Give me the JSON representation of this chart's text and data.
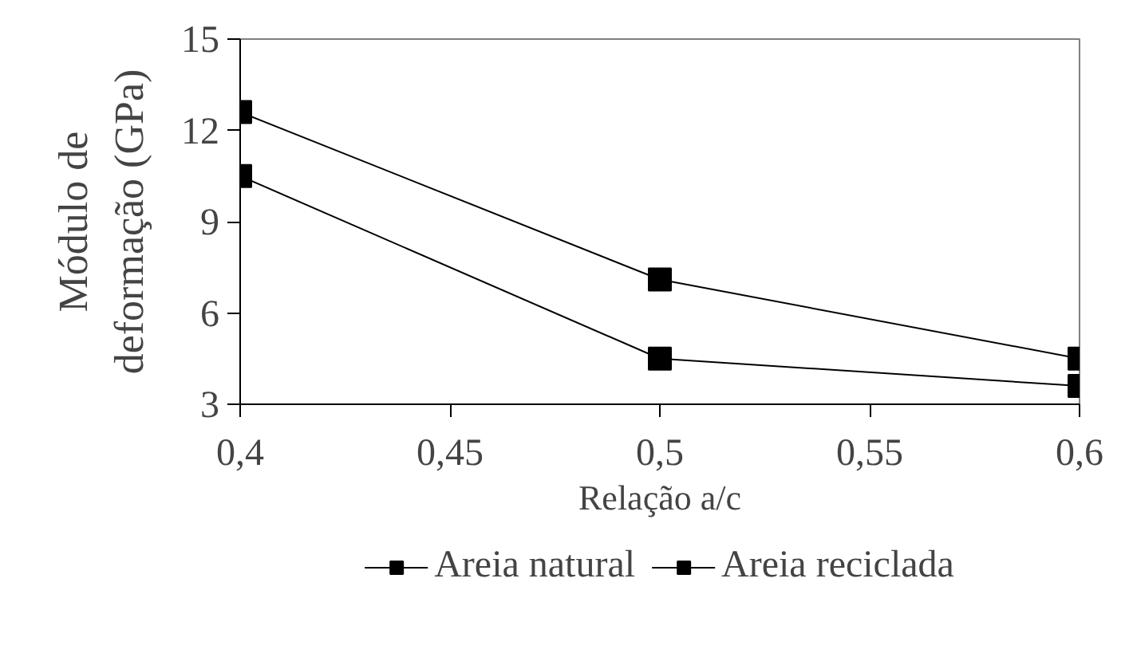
{
  "chart_data": {
    "type": "line",
    "xlabel": "Relação a/c",
    "ylabel": "Módulo de\ndeformação (GPa)",
    "x": [
      0.4,
      0.5,
      0.6
    ],
    "series": [
      {
        "name": "Areia natural",
        "color": "#000000",
        "values": [
          12.6,
          7.1,
          4.5
        ]
      },
      {
        "name": "Areia reciclada",
        "color": "#000000",
        "values": [
          10.5,
          4.5,
          3.6
        ]
      }
    ],
    "xlim": [
      0.4,
      0.6
    ],
    "xticks": [
      {
        "value": 0.4,
        "label": "0,4"
      },
      {
        "value": 0.45,
        "label": "0,45"
      },
      {
        "value": 0.5,
        "label": "0,5"
      },
      {
        "value": 0.55,
        "label": "0,55"
      },
      {
        "value": 0.6,
        "label": "0,6"
      }
    ],
    "ylim": [
      3,
      15
    ],
    "yticks": [
      3,
      6,
      9,
      12,
      15
    ],
    "grid": false,
    "legend": "bottom",
    "marker": "square",
    "line_style": "solid"
  }
}
